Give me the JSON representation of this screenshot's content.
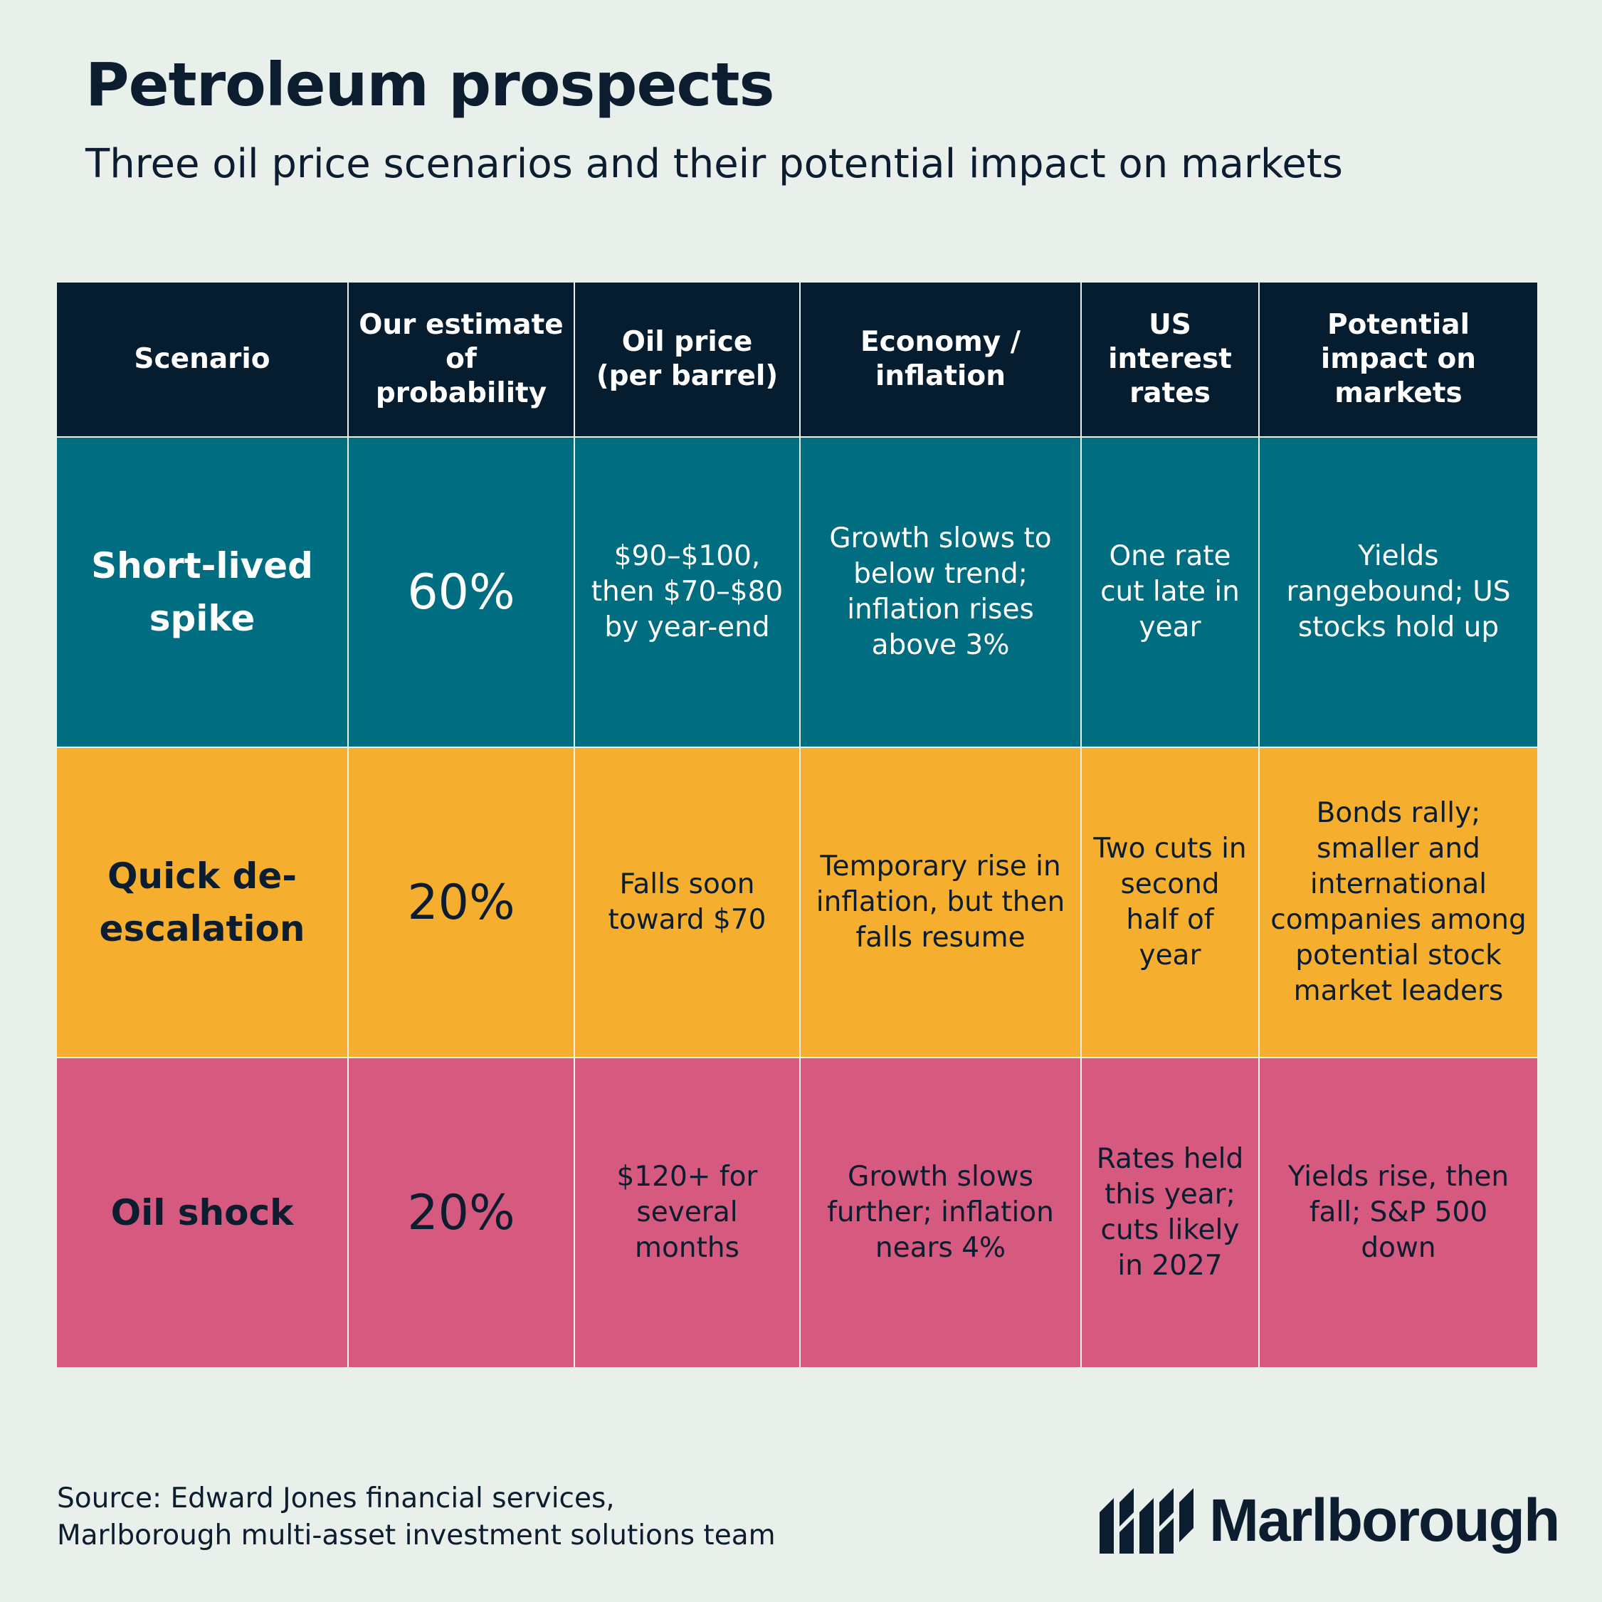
{
  "title": "Petroleum prospects",
  "subtitle": "Three oil price scenarios and their potential impact on markets",
  "chart_data": {
    "type": "table",
    "columns": [
      "Scenario",
      "Our estimate of probability",
      "Oil price (per barrel)",
      "Economy / inflation",
      "US interest rates",
      "Potential impact on markets"
    ],
    "rows": [
      {
        "scenario": "Short-lived spike",
        "probability": "60%",
        "oil_price": "$90–$100, then $70–$80 by year-end",
        "economy": "Growth slows to below trend; inflation rises above 3%",
        "rates": "One rate cut late in year",
        "impact": "Yields rangebound; US stocks hold up",
        "color": "#006d80"
      },
      {
        "scenario": "Quick de-escalation",
        "probability": "20%",
        "oil_price": "Falls soon toward $70",
        "economy": "Temporary rise in inflation, but then falls resume",
        "rates": "Two cuts in second half of year",
        "impact": "Bonds rally; smaller and international companies among potential stock market leaders",
        "color": "#f5ae2e"
      },
      {
        "scenario": "Oil shock",
        "probability": "20%",
        "oil_price": "$120+ for several months",
        "economy": "Growth slows further; inflation nears 4%",
        "rates": "Rates held this year; cuts likely in 2027",
        "impact": "Yields rise, then fall; S&P 500 down",
        "color": "#d6597f"
      }
    ],
    "header_color": "#061c2f"
  },
  "source": {
    "line1": "Source: Edward Jones financial services,",
    "line2": "Marlborough multi-asset investment solutions team"
  },
  "logo": {
    "text": "Marlborough",
    "icon": "marlborough-logo-icon"
  }
}
